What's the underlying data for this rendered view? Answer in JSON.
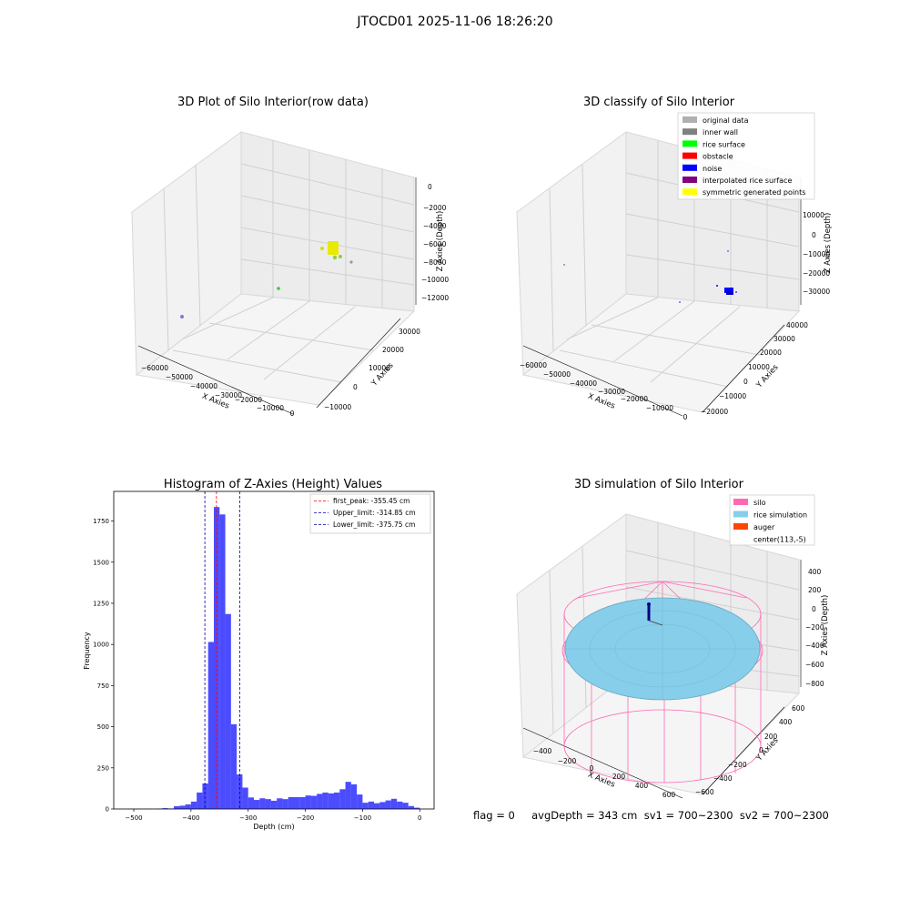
{
  "suptitle": "JTOCD01 2025-11-06 18:26:20",
  "panel1": {
    "title": "3D Plot of Silo Interior(row data)",
    "xlabel": "X Axies",
    "ylabel": "Y Axies",
    "zlabel": "Z Axies (Depth)",
    "xticks": [
      "−60000",
      "−50000",
      "−40000",
      "−30000",
      "−20000",
      "−10000",
      "0"
    ],
    "yticks": [
      "−10000",
      "0",
      "10000",
      "20000",
      "30000"
    ],
    "zticks": [
      "0",
      "−2000",
      "−4000",
      "−6000",
      "−8000",
      "−10000",
      "−12000"
    ]
  },
  "panel2": {
    "title": "3D classify of Silo Interior",
    "xlabel": "X Axies",
    "ylabel": "Y Axies",
    "zlabel": "Z Axies (Depth)",
    "xticks": [
      "−60000",
      "−50000",
      "−40000",
      "−30000",
      "−20000",
      "−10000",
      "0"
    ],
    "yticks": [
      "−20000",
      "−10000",
      "0",
      "10000",
      "20000",
      "30000",
      "40000"
    ],
    "zticks": [
      "10000",
      "0",
      "−10000",
      "−20000",
      "−30000"
    ],
    "legend": [
      {
        "label": "original data",
        "color": "#b0b0b0"
      },
      {
        "label": "inner wall",
        "color": "#808080"
      },
      {
        "label": "rice surface",
        "color": "#00ff00"
      },
      {
        "label": "obstacle",
        "color": "#ff0000"
      },
      {
        "label": "noise",
        "color": "#0000ff"
      },
      {
        "label": "interpolated rice surface",
        "color": "#800080"
      },
      {
        "label": "symmetric generated points",
        "color": "#ffff00"
      }
    ]
  },
  "panel3": {
    "title": "3D simulation of Silo Interior",
    "xlabel": "X Axies",
    "ylabel": "Y Axies",
    "zlabel": "Z Axies (Depth)",
    "xticks": [
      "−400",
      "−200",
      "0",
      "200",
      "400",
      "600"
    ],
    "yticks": [
      "−600",
      "−400",
      "−200",
      "0",
      "200",
      "400",
      "600"
    ],
    "zticks": [
      "400",
      "200",
      "0",
      "−200",
      "−400",
      "−600",
      "−800"
    ],
    "legend": [
      {
        "label": "silo",
        "color": "#ff69b4"
      },
      {
        "label": "rice simulation",
        "color": "#87ceeb"
      },
      {
        "label": "auger",
        "color": "#ff4500"
      },
      {
        "label": "center(113,-5)",
        "color": ""
      }
    ]
  },
  "flag_text": "flag = 0     avgDepth = 343 cm  sv1 = 700~2300  sv2 = 700~2300",
  "chart_data": {
    "type": "bar",
    "title": "Histogram of Z-Axies (Height) Values",
    "xlabel": "Depth (cm)",
    "ylabel": "Frequency",
    "xlim": [
      -535,
      25
    ],
    "ylim": [
      0,
      1930
    ],
    "xticks": [
      -500,
      -400,
      -300,
      -200,
      -100,
      0
    ],
    "yticks": [
      0,
      250,
      500,
      750,
      1000,
      1250,
      1500,
      1750
    ],
    "bar_color": "#0000ff",
    "bin_width": 10,
    "bins": [
      [
        -505,
        1
      ],
      [
        -495,
        1
      ],
      [
        -485,
        1
      ],
      [
        -475,
        1
      ],
      [
        -465,
        1
      ],
      [
        -455,
        2
      ],
      [
        -445,
        5
      ],
      [
        -435,
        3
      ],
      [
        -425,
        17
      ],
      [
        -415,
        20
      ],
      [
        -405,
        28
      ],
      [
        -395,
        45
      ],
      [
        -385,
        100
      ],
      [
        -375,
        155
      ],
      [
        -365,
        1015
      ],
      [
        -355,
        1835
      ],
      [
        -345,
        1790
      ],
      [
        -335,
        1185
      ],
      [
        -325,
        515
      ],
      [
        -315,
        210
      ],
      [
        -305,
        130
      ],
      [
        -295,
        70
      ],
      [
        -285,
        55
      ],
      [
        -275,
        65
      ],
      [
        -265,
        60
      ],
      [
        -255,
        50
      ],
      [
        -245,
        65
      ],
      [
        -235,
        60
      ],
      [
        -225,
        72
      ],
      [
        -215,
        72
      ],
      [
        -205,
        72
      ],
      [
        -195,
        82
      ],
      [
        -185,
        80
      ],
      [
        -175,
        92
      ],
      [
        -165,
        100
      ],
      [
        -155,
        95
      ],
      [
        -145,
        100
      ],
      [
        -135,
        120
      ],
      [
        -125,
        165
      ],
      [
        -115,
        150
      ],
      [
        -105,
        88
      ],
      [
        -95,
        38
      ],
      [
        -85,
        45
      ],
      [
        -75,
        35
      ],
      [
        -65,
        42
      ],
      [
        -55,
        52
      ],
      [
        -45,
        62
      ],
      [
        -35,
        45
      ],
      [
        -25,
        38
      ],
      [
        -15,
        18
      ],
      [
        -5,
        8
      ]
    ],
    "lines": [
      {
        "label": "first_peak: -355.45 cm",
        "x": -355.45,
        "color": "#ff0000"
      },
      {
        "label": "Upper_limit: -314.85 cm",
        "x": -314.85,
        "color": "#0000aa"
      },
      {
        "label": "Lower_limit: -375.75 cm",
        "x": -375.75,
        "color": "#0000aa"
      }
    ],
    "legend_position": "top-right",
    "grid": false
  }
}
